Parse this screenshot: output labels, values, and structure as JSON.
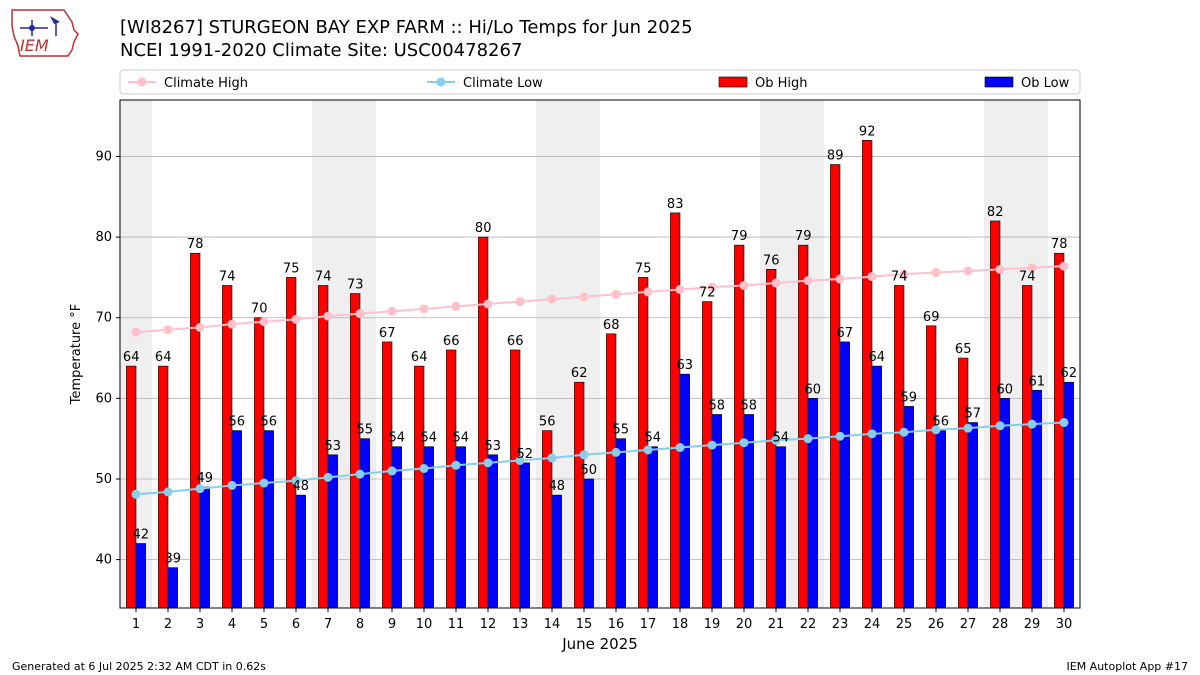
{
  "header": {
    "title_line1": "[WI8267] STURGEON BAY EXP FARM :: Hi/Lo Temps for Jun 2025",
    "title_line2": "NCEI 1991-2020 Climate Site: USC00478267",
    "logo_text": "IEM"
  },
  "footer": {
    "left": "Generated at 6 Jul 2025 2:32 AM CDT in 0.62s",
    "right": "IEM Autoplot App #17"
  },
  "colors": {
    "ob_high": "#ff0000",
    "ob_low": "#0000ff",
    "climate_high": "#ffc0cb",
    "climate_low": "#87ceeb",
    "weekend_band": "#efefef",
    "grid": "#b0b0b0"
  },
  "chart_data": {
    "type": "bar",
    "xlabel": "June 2025",
    "ylabel": "Temperature °F",
    "ylim": [
      34,
      97
    ],
    "yticks": [
      40,
      50,
      60,
      70,
      80,
      90
    ],
    "grid": "horizontal",
    "legend_placement": "top",
    "categories": [
      "1",
      "2",
      "3",
      "4",
      "5",
      "6",
      "7",
      "8",
      "9",
      "10",
      "11",
      "12",
      "13",
      "14",
      "15",
      "16",
      "17",
      "18",
      "19",
      "20",
      "21",
      "22",
      "23",
      "24",
      "25",
      "26",
      "27",
      "28",
      "29",
      "30"
    ],
    "shaded_days": [
      1,
      7,
      8,
      14,
      15,
      21,
      22,
      28,
      29
    ],
    "series": [
      {
        "name": "Climate High",
        "kind": "line",
        "values": [
          68.2,
          68.5,
          68.8,
          69.2,
          69.5,
          69.8,
          70.2,
          70.5,
          70.8,
          71.1,
          71.4,
          71.7,
          72.0,
          72.3,
          72.6,
          72.9,
          73.2,
          73.5,
          73.8,
          74.0,
          74.3,
          74.6,
          74.8,
          75.1,
          75.4,
          75.6,
          75.8,
          76.0,
          76.2,
          76.4
        ]
      },
      {
        "name": "Climate Low",
        "kind": "line",
        "values": [
          48.1,
          48.4,
          48.8,
          49.2,
          49.5,
          49.8,
          50.2,
          50.6,
          51.0,
          51.3,
          51.7,
          52.0,
          52.3,
          52.6,
          53.0,
          53.3,
          53.6,
          53.9,
          54.2,
          54.5,
          54.8,
          55.0,
          55.3,
          55.6,
          55.8,
          56.1,
          56.3,
          56.6,
          56.8,
          57.0
        ]
      },
      {
        "name": "Ob High",
        "kind": "bar",
        "values": [
          64,
          64,
          78,
          74,
          70,
          75,
          74,
          73,
          67,
          64,
          66,
          80,
          66,
          56,
          62,
          68,
          75,
          83,
          72,
          79,
          76,
          79,
          89,
          92,
          74,
          69,
          65,
          82,
          74,
          78
        ]
      },
      {
        "name": "Ob Low",
        "kind": "bar",
        "values": [
          42,
          39,
          49,
          56,
          56,
          48,
          53,
          55,
          54,
          54,
          54,
          53,
          52,
          48,
          50,
          55,
          54,
          63,
          58,
          58,
          54,
          60,
          67,
          64,
          59,
          56,
          57,
          60,
          61,
          62
        ]
      }
    ]
  }
}
